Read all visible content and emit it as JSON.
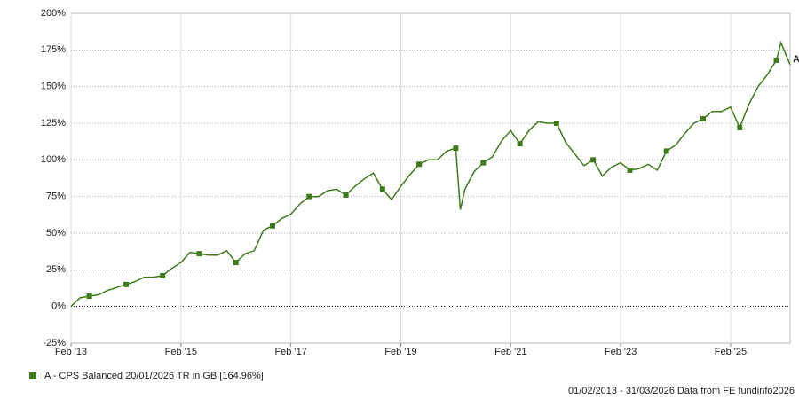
{
  "chart_data": {
    "type": "line",
    "x": [
      "2013-02",
      "2013-04",
      "2013-06",
      "2013-08",
      "2013-10",
      "2013-12",
      "2014-02",
      "2014-04",
      "2014-06",
      "2014-08",
      "2014-10",
      "2014-12",
      "2015-02",
      "2015-04",
      "2015-06",
      "2015-08",
      "2015-10",
      "2015-12",
      "2016-02",
      "2016-04",
      "2016-06",
      "2016-08",
      "2016-10",
      "2016-12",
      "2017-02",
      "2017-04",
      "2017-06",
      "2017-08",
      "2017-10",
      "2017-12",
      "2018-02",
      "2018-04",
      "2018-06",
      "2018-08",
      "2018-10",
      "2018-12",
      "2019-02",
      "2019-04",
      "2019-06",
      "2019-08",
      "2019-10",
      "2019-12",
      "2020-02",
      "2020-03",
      "2020-04",
      "2020-06",
      "2020-08",
      "2020-10",
      "2020-12",
      "2021-02",
      "2021-04",
      "2021-06",
      "2021-08",
      "2021-10",
      "2021-12",
      "2022-02",
      "2022-04",
      "2022-06",
      "2022-08",
      "2022-10",
      "2022-12",
      "2023-02",
      "2023-04",
      "2023-06",
      "2023-08",
      "2023-10",
      "2023-12",
      "2024-02",
      "2024-04",
      "2024-06",
      "2024-08",
      "2024-10",
      "2024-12",
      "2025-02",
      "2025-04",
      "2025-06",
      "2025-08",
      "2025-10",
      "2025-12",
      "2026-01",
      "2026-03"
    ],
    "series": [
      {
        "name": "A - CPS Balanced 20/01/2026 TR in GB [164.96%]",
        "end_label": "A",
        "color": "#3f7a1a",
        "values": [
          0,
          6,
          7,
          8,
          11,
          13,
          15,
          17,
          20,
          20,
          21,
          26,
          30,
          37,
          36,
          35,
          35,
          38,
          30,
          36,
          38,
          52,
          55,
          60,
          63,
          70,
          75,
          75,
          79,
          80,
          76,
          82,
          87,
          91,
          80,
          73,
          82,
          90,
          97,
          100,
          100,
          106,
          108,
          66,
          80,
          92,
          98,
          102,
          113,
          120,
          111,
          120,
          126,
          125,
          125,
          112,
          104,
          96,
          100,
          89,
          95,
          98,
          93,
          94,
          97,
          93,
          106,
          110,
          118,
          125,
          128,
          133,
          133,
          136,
          122,
          138,
          150,
          158,
          168,
          180,
          165
        ]
      }
    ],
    "xlim": [
      "2013-02",
      "2026-03"
    ],
    "xticks": [
      {
        "value": "2013-02",
        "label": "Feb '13"
      },
      {
        "value": "2015-02",
        "label": "Feb '15"
      },
      {
        "value": "2017-02",
        "label": "Feb '17"
      },
      {
        "value": "2019-02",
        "label": "Feb '19"
      },
      {
        "value": "2021-02",
        "label": "Feb '21"
      },
      {
        "value": "2023-02",
        "label": "Feb '23"
      },
      {
        "value": "2025-02",
        "label": "Feb '25"
      }
    ],
    "ylim": [
      -25,
      200
    ],
    "yticks": [
      {
        "value": -25,
        "label": "-25%"
      },
      {
        "value": 0,
        "label": "0%"
      },
      {
        "value": 25,
        "label": "25%"
      },
      {
        "value": 50,
        "label": "50%"
      },
      {
        "value": 75,
        "label": "75%"
      },
      {
        "value": 100,
        "label": "100%"
      },
      {
        "value": 125,
        "label": "125%"
      },
      {
        "value": 150,
        "label": "150%"
      },
      {
        "value": 175,
        "label": "175%"
      },
      {
        "value": 200,
        "label": "200%"
      }
    ],
    "grid": true,
    "footer": "01/02/2013 - 31/03/2026 Data from FE fundinfo2026"
  }
}
